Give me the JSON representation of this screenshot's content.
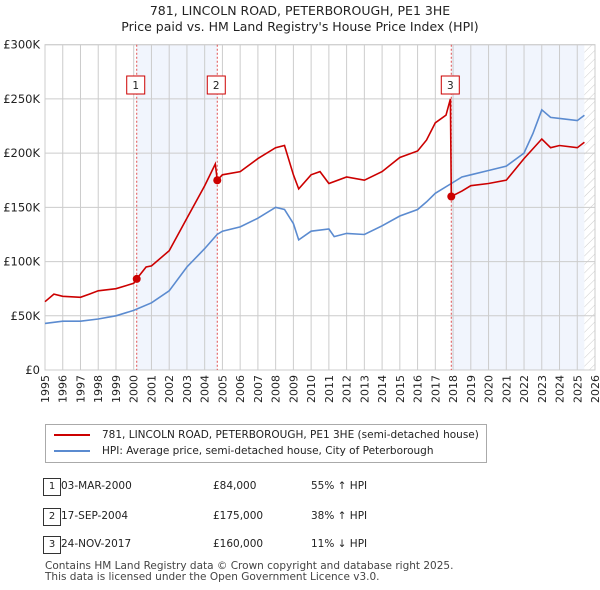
{
  "title": "781, LINCOLN ROAD, PETERBOROUGH, PE1 3HE",
  "subtitle": "Price paid vs. HM Land Registry's House Price Index (HPI)",
  "chart_data": {
    "type": "line",
    "ylim": [
      0,
      300000
    ],
    "xlim": [
      1995,
      2026
    ],
    "yticks": [
      {
        "v": 0,
        "label": "£0"
      },
      {
        "v": 50000,
        "label": "£50K"
      },
      {
        "v": 100000,
        "label": "£100K"
      },
      {
        "v": 150000,
        "label": "£150K"
      },
      {
        "v": 200000,
        "label": "£200K"
      },
      {
        "v": 250000,
        "label": "£250K"
      },
      {
        "v": 300000,
        "label": "£300K"
      }
    ],
    "xticks": [
      "1995",
      "1996",
      "1997",
      "1998",
      "1999",
      "2000",
      "2001",
      "2002",
      "2003",
      "2004",
      "2005",
      "2006",
      "2007",
      "2008",
      "2009",
      "2010",
      "2011",
      "2012",
      "2013",
      "2014",
      "2015",
      "2016",
      "2017",
      "2018",
      "2019",
      "2020",
      "2021",
      "2022",
      "2023",
      "2024",
      "2025",
      "2026"
    ],
    "series": [
      {
        "name": "781, LINCOLN ROAD, PETERBOROUGH, PE1 3HE (semi-detached house)",
        "color": "#cc0000",
        "x": [
          1995,
          1995.5,
          1996,
          1997,
          1997.5,
          1998,
          1999,
          2000,
          2000.17,
          2000.7,
          2001,
          2002,
          2003,
          2004,
          2004.6,
          2004.71,
          2005,
          2006,
          2007,
          2008,
          2008.5,
          2009,
          2009.3,
          2010,
          2010.5,
          2011,
          2012,
          2013,
          2014,
          2015,
          2016,
          2016.5,
          2017,
          2017.6,
          2017.85,
          2017.9,
          2018.5,
          2019,
          2020,
          2021,
          2021.5,
          2022,
          2023,
          2023.5,
          2024,
          2025,
          2025.4
        ],
        "y": [
          63,
          70,
          68,
          67,
          70,
          73,
          75,
          80,
          84,
          95,
          96,
          110,
          140,
          170,
          190,
          175,
          180,
          183,
          195,
          205,
          207,
          180,
          167,
          180,
          183,
          172,
          178,
          175,
          183,
          196,
          202,
          212,
          228,
          235,
          250,
          160,
          165,
          170,
          172,
          175,
          185,
          195,
          213,
          205,
          207,
          205,
          210
        ]
      },
      {
        "name": "HPI: Average price, semi-detached house, City of Peterborough",
        "color": "#5b8bd0",
        "x": [
          1995,
          1996,
          1997,
          1998,
          1999,
          2000,
          2001,
          2002,
          2003,
          2004,
          2004.7,
          2005,
          2006,
          2007,
          2008,
          2008.5,
          2009,
          2009.3,
          2010,
          2011,
          2011.3,
          2012,
          2013,
          2014,
          2015,
          2016,
          2016.5,
          2017,
          2017.9,
          2018.5,
          2019,
          2020,
          2021,
          2022,
          2022.5,
          2023,
          2023.5,
          2024,
          2025,
          2025.4
        ],
        "y": [
          43,
          45,
          45,
          47,
          50,
          55,
          62,
          73,
          95,
          112,
          125,
          128,
          132,
          140,
          150,
          148,
          135,
          120,
          128,
          130,
          123,
          126,
          125,
          133,
          142,
          148,
          155,
          163,
          172,
          178,
          180,
          184,
          188,
          200,
          218,
          240,
          233,
          232,
          230,
          235
        ]
      }
    ],
    "y_units": "thousands GBP",
    "sales": [
      {
        "n": "1",
        "x": 2000.17,
        "y": 84
      },
      {
        "n": "2",
        "x": 2004.71,
        "y": 175
      },
      {
        "n": "3",
        "x": 2017.9,
        "y": 160
      }
    ],
    "legend_placement": "below"
  },
  "legend": [
    "781, LINCOLN ROAD, PETERBOROUGH, PE1 3HE (semi-detached house)",
    "HPI: Average price, semi-detached house, City of Peterborough"
  ],
  "transactions": [
    {
      "n": "1",
      "date": "03-MAR-2000",
      "price": "£84,000",
      "hpi": "55% ↑ HPI"
    },
    {
      "n": "2",
      "date": "17-SEP-2004",
      "price": "£175,000",
      "hpi": "38% ↑ HPI"
    },
    {
      "n": "3",
      "date": "24-NOV-2017",
      "price": "£160,000",
      "hpi": "11% ↓ HPI"
    }
  ],
  "footer": [
    "Contains HM Land Registry data © Crown copyright and database right 2025.",
    "This data is licensed under the Open Government Licence v3.0."
  ]
}
